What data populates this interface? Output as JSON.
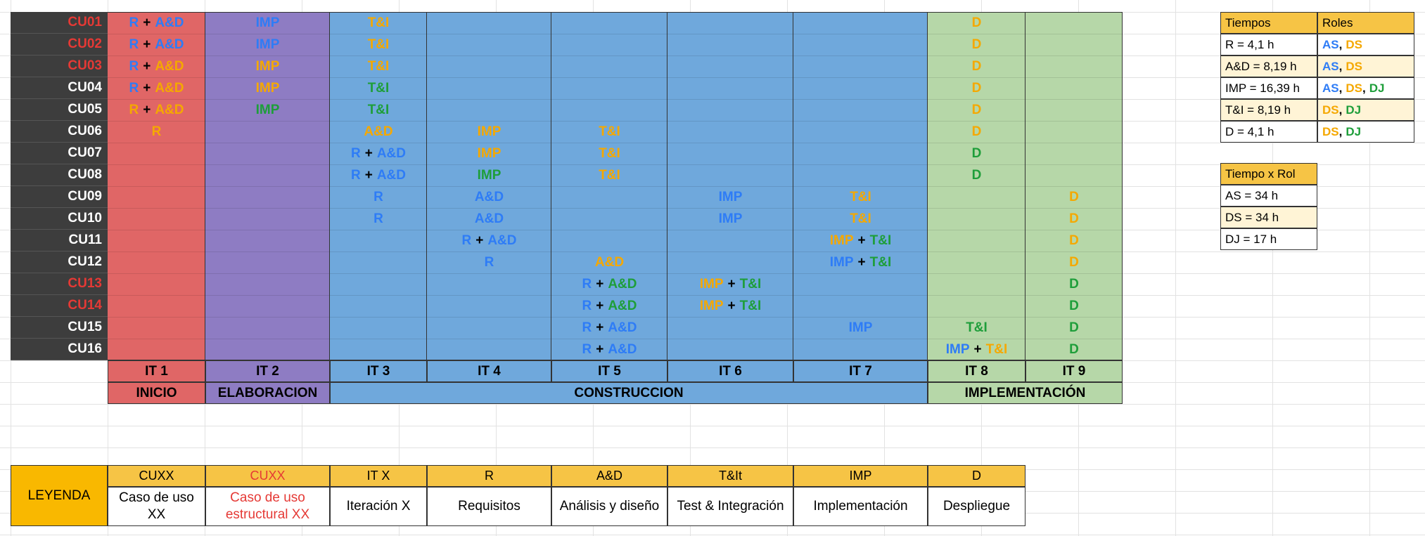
{
  "rows": [
    {
      "label": "CU01",
      "structural": true
    },
    {
      "label": "CU02",
      "structural": true
    },
    {
      "label": "CU03",
      "structural": true
    },
    {
      "label": "CU04",
      "structural": false
    },
    {
      "label": "CU05",
      "structural": false
    },
    {
      "label": "CU06",
      "structural": false
    },
    {
      "label": "CU07",
      "structural": false
    },
    {
      "label": "CU08",
      "structural": false
    },
    {
      "label": "CU09",
      "structural": false
    },
    {
      "label": "CU10",
      "structural": false
    },
    {
      "label": "CU11",
      "structural": false
    },
    {
      "label": "CU12",
      "structural": false
    },
    {
      "label": "CU13",
      "structural": true
    },
    {
      "label": "CU14",
      "structural": true
    },
    {
      "label": "CU15",
      "structural": false
    },
    {
      "label": "CU16",
      "structural": false
    }
  ],
  "iterations": [
    "IT 1",
    "IT 2",
    "IT 3",
    "IT 4",
    "IT 5",
    "IT 6",
    "IT 7",
    "IT 8",
    "IT 9"
  ],
  "phases": {
    "inicio": "INICIO",
    "elaboracion": "ELABORACION",
    "construccion": "CONSTRUCCION",
    "implementacion": "IMPLEMENTACIÓN"
  },
  "phase_colors": {
    "inicio": "#e06666",
    "elaboracion": "#8e7cc3",
    "construccion": "#6fa8dc",
    "implementacion": "#b6d7a8"
  },
  "plus": "+",
  "r": "R",
  "ad": "A&D",
  "imp": "IMP",
  "ti": "T&I",
  "d": "D",
  "legend": {
    "title": "LEYENDA",
    "headers": [
      "CUXX",
      "CUXX",
      "IT X",
      "R",
      "A&D",
      "T&It",
      "IMP",
      "D"
    ],
    "descriptions": [
      "Caso de uso XX",
      "Caso de uso estructural XX",
      "Iteración X",
      "Requisitos",
      "Análisis y diseño",
      "Test & Integración",
      "Implementación",
      "Despliegue"
    ]
  },
  "tiempos": {
    "header_tiempos": "Tiempos",
    "header_roles": "Roles",
    "rows": [
      "R = 4,1 h",
      "A&D = 8,19 h",
      "IMP = 16,39 h",
      "T&I = 8,19 h",
      "D = 4,1 h"
    ],
    "roles": {
      "as": "AS",
      "ds": "DS",
      "dj": "DJ",
      "sep": ","
    }
  },
  "tiempo_x_rol": {
    "header": "Tiempo x Rol",
    "rows": [
      "AS = 34 h",
      "DS = 34 h",
      "DJ = 17 h"
    ]
  }
}
